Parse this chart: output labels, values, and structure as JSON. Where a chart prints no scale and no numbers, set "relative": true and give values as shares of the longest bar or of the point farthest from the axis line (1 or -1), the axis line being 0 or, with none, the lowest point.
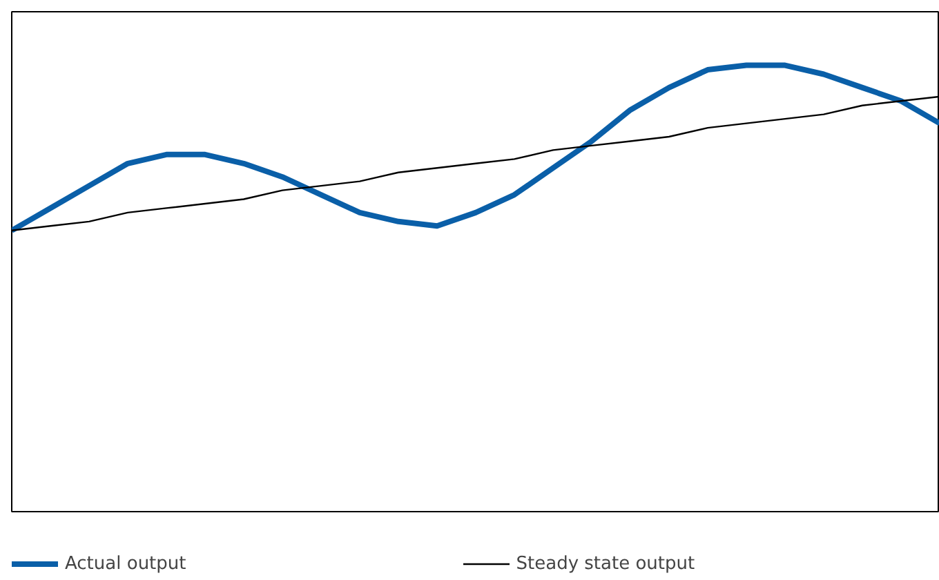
{
  "chart_data": {
    "type": "line",
    "relative": true,
    "categories": [
      null,
      null,
      null,
      null,
      null,
      null,
      null,
      null,
      null,
      null,
      null,
      null,
      null,
      null,
      null,
      null,
      null,
      null,
      null,
      null,
      null,
      null,
      null,
      null,
      null
    ],
    "series": [
      {
        "name": "Actual output",
        "color": "#0a5fa8",
        "values": [
          0.63,
          0.68,
          0.73,
          0.78,
          0.8,
          0.8,
          0.78,
          0.75,
          0.71,
          0.67,
          0.65,
          0.64,
          0.67,
          0.71,
          0.77,
          0.83,
          0.9,
          0.95,
          0.99,
          1.0,
          1.0,
          0.98,
          0.95,
          0.92,
          0.87
        ]
      },
      {
        "name": "Steady state output",
        "color": "#000000",
        "values": [
          0.63,
          0.64,
          0.65,
          0.67,
          0.68,
          0.69,
          0.7,
          0.72,
          0.73,
          0.74,
          0.76,
          0.77,
          0.78,
          0.79,
          0.81,
          0.82,
          0.83,
          0.84,
          0.86,
          0.87,
          0.88,
          0.89,
          0.91,
          0.92,
          0.93
        ]
      }
    ],
    "legend": "bottom",
    "grid": false,
    "marker": "none"
  }
}
